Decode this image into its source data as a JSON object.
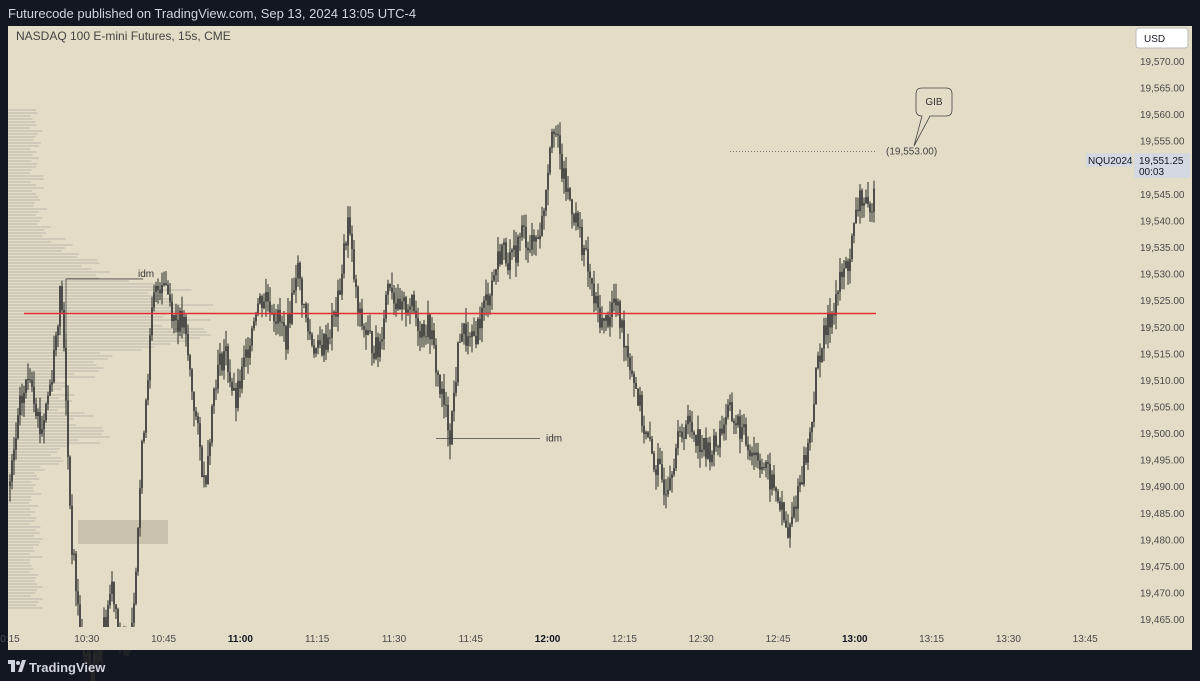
{
  "header": {
    "attribution": "Futurecode published on TradingView.com, Sep 13, 2024 13:05 UTC-4"
  },
  "footer": {
    "brand": "TradingView",
    "logo_icon": "tradingview-logo-icon"
  },
  "colors": {
    "plot_bg": "#e3dcc6",
    "candle": "#2b2b2b",
    "key_level": "#e03131",
    "dotted": "#555555",
    "profile": "#8a8a8a"
  },
  "chart_data": {
    "type": "line",
    "title": "NASDAQ 100 E-mini Futures, 15s, CME",
    "currency": "USD",
    "symbol": "NQU2024",
    "last_price": "19,551.25",
    "countdown": "00:03",
    "x_tick_labels": [
      "0:15",
      "10:30",
      "10:45",
      "11:00",
      "11:15",
      "11:30",
      "11:45",
      "12:00",
      "12:15",
      "12:30",
      "12:45",
      "13:00",
      "13:15",
      "13:30",
      "13:45"
    ],
    "y_tick_labels": [
      "19,570.00",
      "19,565.00",
      "19,560.00",
      "19,555.00",
      "19,550.00",
      "19,545.00",
      "19,540.00",
      "19,535.00",
      "19,530.00",
      "19,525.00",
      "19,520.00",
      "19,515.00",
      "19,510.00",
      "19,505.00",
      "19,500.00",
      "19,495.00",
      "19,490.00",
      "19,485.00",
      "19,480.00",
      "19,475.00",
      "19,470.00",
      "19,465.00"
    ],
    "ylim": [
      19462,
      19575
    ],
    "key_level": 19522.5,
    "series": [
      {
        "x": [
          "10:15",
          "10:17",
          "10:19",
          "10:21",
          "10:23",
          "10:25",
          "10:27",
          "10:29",
          "10:31",
          "10:33",
          "10:35",
          "10:37",
          "10:39",
          "10:41",
          "10:43",
          "10:45",
          "10:47",
          "10:49",
          "10:51",
          "10:53",
          "10:55",
          "10:57",
          "10:59",
          "11:01",
          "11:03",
          "11:05",
          "11:07",
          "11:09",
          "11:11",
          "11:13",
          "11:15",
          "11:17",
          "11:19",
          "11:21",
          "11:23",
          "11:25",
          "11:27",
          "11:29",
          "11:31",
          "11:33",
          "11:35",
          "11:37",
          "11:39",
          "11:41",
          "11:43",
          "11:45",
          "11:47",
          "11:49",
          "11:51",
          "11:53",
          "11:55",
          "11:57",
          "11:59",
          "12:01",
          "12:03",
          "12:05",
          "12:07",
          "12:09",
          "12:11",
          "12:13",
          "12:15",
          "12:17",
          "12:19",
          "12:21",
          "12:23",
          "12:25",
          "12:27",
          "12:29",
          "12:31",
          "12:33",
          "12:35",
          "12:37",
          "12:39",
          "12:41",
          "12:43",
          "12:45",
          "12:47",
          "12:49",
          "12:51",
          "12:53",
          "12:55",
          "12:57",
          "12:59",
          "13:01",
          "13:03",
          "13:04"
        ],
        "y": [
          19490,
          19505,
          19512,
          19500,
          19510,
          19528,
          19480,
          19460,
          19455,
          19462,
          19472,
          19458,
          19466,
          19500,
          19525,
          19530,
          19522,
          19520,
          19505,
          19490,
          19510,
          19516,
          19505,
          19514,
          19524,
          19526,
          19522,
          19518,
          19532,
          19520,
          19515,
          19518,
          19524,
          19540,
          19522,
          19518,
          19515,
          19530,
          19522,
          19525,
          19520,
          19520,
          19508,
          19500,
          19520,
          19516,
          19522,
          19528,
          19535,
          19532,
          19538,
          19535,
          19540,
          19560,
          19548,
          19542,
          19535,
          19525,
          19520,
          19525,
          19518,
          19510,
          19500,
          19494,
          19490,
          19497,
          19502,
          19500,
          19496,
          19498,
          19504,
          19502,
          19498,
          19496,
          19492,
          19488,
          19480,
          19490,
          19498,
          19515,
          19521,
          19528,
          19533,
          19545,
          19540,
          19551
        ]
      }
    ],
    "annotations": [
      {
        "text": "idm",
        "time": "10:40",
        "value": 19529
      },
      {
        "text": "idm",
        "time": "11:49",
        "value": 19499
      },
      {
        "text": "GIB",
        "time": "13:06",
        "value": 19563
      },
      {
        "text": "(19,553.00)",
        "value": 19553
      }
    ]
  }
}
